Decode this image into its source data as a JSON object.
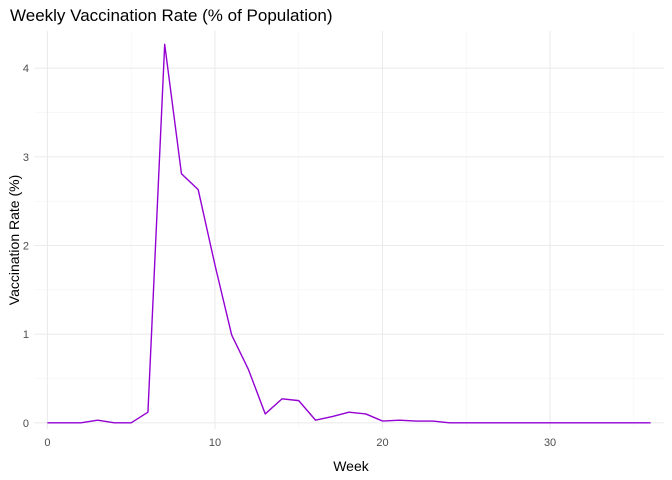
{
  "chart_data": {
    "type": "line",
    "title": "Weekly Vaccination Rate (% of Population)",
    "xlabel": "Week",
    "ylabel": "Vaccination Rate (%)",
    "xlim": [
      -0.8,
      36.8
    ],
    "ylim": [
      -0.07,
      4.42
    ],
    "x_ticks": [
      0,
      10,
      20,
      30
    ],
    "y_ticks": [
      0,
      1,
      2,
      3,
      4
    ],
    "grid": true,
    "legend": "none",
    "line_color": "#9400D3",
    "series": [
      {
        "x": [
          0,
          1,
          2,
          3,
          4,
          5,
          6,
          7,
          8,
          9,
          10,
          11,
          12,
          13,
          14,
          15,
          16,
          17,
          18,
          19,
          20,
          21,
          22,
          23,
          24,
          25,
          26,
          27,
          28,
          29,
          30,
          31,
          32,
          33,
          34,
          35,
          36
        ],
        "values": [
          0,
          0,
          0,
          0.03,
          0,
          0,
          0.12,
          4.27,
          2.81,
          2.63,
          1.78,
          0.99,
          0.6,
          0.1,
          0.27,
          0.25,
          0.03,
          0.07,
          0.12,
          0.1,
          0.02,
          0.03,
          0.02,
          0.02,
          0,
          0,
          0,
          0,
          0,
          0,
          0,
          0,
          0,
          0,
          0,
          0,
          0
        ]
      }
    ]
  }
}
